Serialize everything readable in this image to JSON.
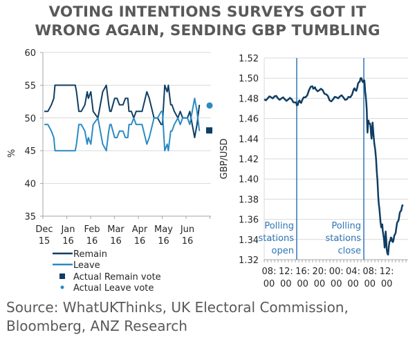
{
  "title": {
    "line1": "VOTING INTENTIONS SURVEYS GOT IT",
    "line2": "WRONG AGAIN, SENDING GBP TUMBLING"
  },
  "colors": {
    "remain": "#0f3d63",
    "leave": "#2a8ac4",
    "gbp": "#0f3d63",
    "event_line": "#2e75b6",
    "grid": "#d9d9d9",
    "axis": "#a6a6a6",
    "text": "#595959"
  },
  "chart_data": [
    {
      "type": "line",
      "title": "",
      "ylabel": "%",
      "xlabel": "",
      "ylim": [
        35,
        60
      ],
      "yticks": [
        35,
        40,
        45,
        50,
        55,
        60
      ],
      "xlim": [
        0,
        7
      ],
      "x_tick_labels": [
        {
          "month": "Dec",
          "year": "15"
        },
        {
          "month": "Jan",
          "year": "16"
        },
        {
          "month": "Feb",
          "year": "16"
        },
        {
          "month": "Mar",
          "year": "16"
        },
        {
          "month": "Apr",
          "year": "16"
        },
        {
          "month": "May",
          "year": "16"
        },
        {
          "month": "Jun",
          "year": "16"
        }
      ],
      "grid": true,
      "legend_position": "bottom",
      "x": [
        0,
        0.15,
        0.3,
        0.4,
        0.45,
        1.3,
        1.35,
        1.45,
        1.55,
        1.7,
        1.8,
        1.85,
        1.95,
        2.05,
        2.25,
        2.45,
        2.6,
        2.7,
        2.75,
        2.8,
        2.95,
        3.05,
        3.15,
        3.3,
        3.4,
        3.5,
        3.55,
        3.65,
        3.75,
        3.85,
        4.0,
        4.1,
        4.3,
        4.4,
        4.6,
        4.75,
        4.9,
        4.95,
        5.05,
        5.15,
        5.2,
        5.3,
        5.35,
        5.45,
        5.6,
        5.7,
        5.8,
        5.9,
        6.0,
        6.1,
        6.2,
        6.3,
        6.4,
        6.5
      ],
      "series": [
        {
          "name": "Remain",
          "values": [
            51,
            51,
            52,
            53,
            55,
            55,
            54,
            51,
            51,
            52,
            54,
            53,
            54,
            51,
            50,
            54,
            55,
            52,
            51,
            51,
            53,
            53,
            52,
            52,
            53,
            53,
            51,
            51,
            50,
            51,
            51,
            51,
            54,
            53,
            50,
            50,
            49,
            49,
            55,
            54,
            55,
            52,
            52,
            51,
            50,
            51,
            50,
            50,
            50,
            51,
            49,
            47,
            49,
            52
          ]
        },
        {
          "name": "Leave",
          "values": [
            49,
            49,
            48,
            47,
            45,
            45,
            46,
            49,
            49,
            48,
            46,
            47,
            46,
            49,
            50,
            46,
            45,
            48,
            49,
            49,
            47,
            47,
            48,
            48,
            47,
            47,
            49,
            49,
            50,
            49,
            49,
            49,
            46,
            47,
            50,
            50,
            51,
            51,
            45,
            46,
            45,
            48,
            48,
            49,
            50,
            49,
            50,
            50,
            50,
            49,
            51,
            53,
            51,
            48
          ]
        },
        {
          "name": "Actual Remain vote",
          "type": "marker",
          "marker": "square",
          "value": 48.1
        },
        {
          "name": "Actual Leave vote",
          "type": "marker",
          "marker": "circle",
          "value": 51.9
        }
      ],
      "legend": [
        "Remain",
        "Leave",
        "Actual Remain vote",
        "Actual Leave vote"
      ]
    },
    {
      "type": "line",
      "title": "",
      "ylabel": "GBP/USD",
      "xlabel": "",
      "ylim": [
        1.32,
        1.52
      ],
      "yticks": [
        1.32,
        1.34,
        1.36,
        1.38,
        1.4,
        1.42,
        1.44,
        1.46,
        1.48,
        1.5,
        1.52
      ],
      "xlim_hours": [
        6,
        16
      ],
      "x_tick_labels": [
        {
          "top": "08:",
          "bottom": "00"
        },
        {
          "top": "12:",
          "bottom": "00"
        },
        {
          "top": "16:",
          "bottom": "00"
        },
        {
          "top": "20:",
          "bottom": "00"
        },
        {
          "top": "00:",
          "bottom": "00"
        },
        {
          "top": "04:",
          "bottom": "00"
        },
        {
          "top": "08:",
          "bottom": "00"
        },
        {
          "top": "12:",
          "bottom": "00"
        }
      ],
      "grid": true,
      "series": [
        {
          "name": "GBP/USD",
          "hours": [
            0,
            1,
            2,
            3,
            4,
            5,
            6,
            7,
            8,
            9,
            9.5,
            10,
            10.5,
            11,
            12,
            13,
            14,
            14.5,
            15,
            16,
            17,
            18,
            19,
            20,
            21,
            22,
            23,
            24,
            25,
            26,
            26.5,
            27,
            27.5,
            28,
            28.5,
            29,
            29.2,
            29.5,
            29.8,
            30,
            30.3,
            30.6,
            30.9,
            31.2,
            31.5,
            32,
            32.5,
            32.8,
            33,
            33.3,
            33.6,
            34,
            34.3,
            34.6,
            35,
            35.3,
            35.6,
            36,
            36.4,
            36.8,
            37.2,
            37.6,
            38,
            38.4,
            38.8,
            39.2,
            39.6,
            40,
            40.3
          ],
          "values": [
            1.479,
            1.48,
            1.481,
            1.482,
            1.48,
            1.48,
            1.479,
            1.479,
            1.479,
            1.476,
            1.473,
            1.477,
            1.476,
            1.478,
            1.481,
            1.488,
            1.492,
            1.49,
            1.489,
            1.488,
            1.488,
            1.484,
            1.478,
            1.479,
            1.481,
            1.482,
            1.481,
            1.479,
            1.481,
            1.489,
            1.488,
            1.49,
            1.496,
            1.5,
            1.497,
            1.498,
            1.494,
            1.482,
            1.468,
            1.446,
            1.458,
            1.455,
            1.452,
            1.44,
            1.456,
            1.435,
            1.42,
            1.403,
            1.392,
            1.375,
            1.365,
            1.352,
            1.355,
            1.345,
            1.332,
            1.348,
            1.33,
            1.325,
            1.338,
            1.342,
            1.338,
            1.34,
            1.345,
            1.352,
            1.358,
            1.362,
            1.368,
            1.372,
            1.373
          ]
        }
      ],
      "x_origin_label": "06:00",
      "event_lines": [
        {
          "hour_offset": 10,
          "label": [
            "Polling",
            "stations",
            "open"
          ]
        },
        {
          "hour_offset": 30.9,
          "label": [
            "Polling",
            "stations",
            "close"
          ]
        }
      ]
    }
  ],
  "source": {
    "line1": "Source: WhatUKThinks, UK Electoral Commission,",
    "line2": "Bloomberg, ANZ Research"
  }
}
